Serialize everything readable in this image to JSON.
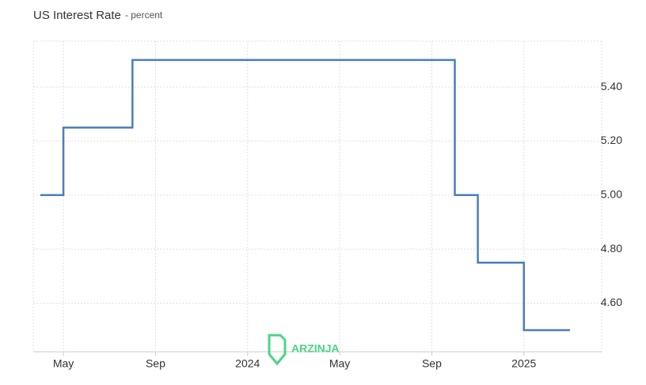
{
  "chart_data": {
    "type": "step-line",
    "title": "US Interest Rate",
    "subtitle": "- percent",
    "watermark": "ARZINJA",
    "x": [
      "2023-04",
      "2023-05",
      "2023-08",
      "2024-10",
      "2024-11",
      "2025-01",
      "2025-03"
    ],
    "values": [
      5.0,
      5.25,
      5.5,
      5.0,
      4.75,
      4.5,
      4.5
    ],
    "color": "#4a7ebb",
    "xlim": [
      "2023-04",
      "2025-04"
    ],
    "xticks": [
      {
        "value": "2023-05",
        "label": "May"
      },
      {
        "value": "2023-09",
        "label": "Sep"
      },
      {
        "value": "2024-01",
        "label": "2024"
      },
      {
        "value": "2024-05",
        "label": "May"
      },
      {
        "value": "2024-09",
        "label": "Sep"
      },
      {
        "value": "2025-01",
        "label": "2025"
      }
    ],
    "ylim": [
      4.42,
      5.57
    ],
    "yticks": [
      {
        "value": 4.6,
        "label": "4.60"
      },
      {
        "value": 4.8,
        "label": "4.80"
      },
      {
        "value": 5.0,
        "label": "5.00"
      },
      {
        "value": 5.2,
        "label": "5.20"
      },
      {
        "value": 5.4,
        "label": "5.40"
      }
    ],
    "grid": true
  }
}
